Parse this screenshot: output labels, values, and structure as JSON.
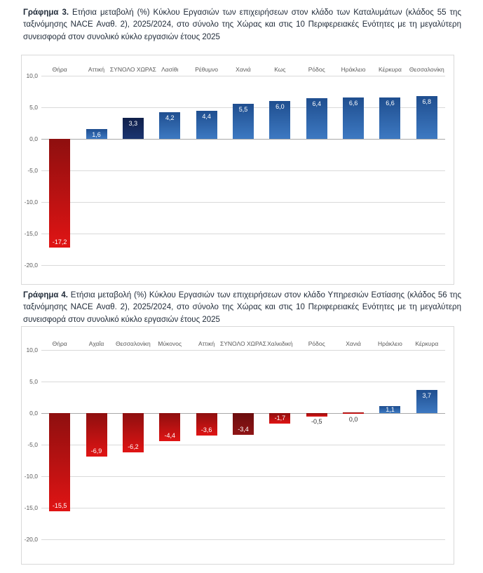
{
  "page": {
    "background": "#ffffff"
  },
  "colors": {
    "title_text": "#1f2a38",
    "axis_text": "#595959",
    "grid_line": "#d9d9d9",
    "zero_line": "#a8a8a8",
    "panel_border": "#d9d9d9",
    "inside_label": "#ffffff",
    "outside_label": "#333333",
    "blue_top": "#1f4e8f",
    "blue_bottom": "#3d79c2",
    "navy_top": "#101f4a",
    "navy_bottom": "#1b3570",
    "red_top": "#8e0f0f",
    "red_bottom": "#e01414",
    "maroon_top": "#6b0d0e",
    "maroon_bottom": "#8f1516"
  },
  "chart_data": [
    {
      "type": "bar",
      "title_prefix": "Γράφημα 3.",
      "title": "Ετήσια μεταβολή (%) Κύκλου Εργασιών των επιχειρήσεων στον κλάδο των Καταλυμάτων (κλάδος 55 της ταξινόμησης NACE Αναθ. 2), 2025/2024, στο σύνολο της Χώρας και στις 10 Περιφερειακές Ενότητες με τη μεγαλύτερη συνεισφορά στον συνολικό κύκλο εργασιών έτους 2025",
      "categories": [
        "Θήρα",
        "Αττική",
        "ΣΥΝΟΛΟ ΧΩΡΑΣ",
        "Λασίθι",
        "Ρέθυμνο",
        "Χανιά",
        "Κως",
        "Ρόδος",
        "Ηράκλειο",
        "Κέρκυρα",
        "Θεσσαλονίκη"
      ],
      "values": [
        -17.2,
        1.6,
        3.3,
        4.2,
        4.4,
        5.5,
        6.0,
        6.4,
        6.6,
        6.6,
        6.8
      ],
      "value_labels": [
        "-17,2",
        "1,6",
        "3,3",
        "4,2",
        "4,4",
        "5,5",
        "6,0",
        "6,4",
        "6,6",
        "6,6",
        "6,8"
      ],
      "styles": [
        "red",
        "blue",
        "navy",
        "blue",
        "blue",
        "blue",
        "blue",
        "blue",
        "blue",
        "blue",
        "blue"
      ],
      "ylim": [
        -20,
        10
      ],
      "ytick_step": 5,
      "ytick_labels": [
        "10,0",
        "5,0",
        "0,0",
        "-5,0",
        "-10,0",
        "-15,0",
        "-20,0"
      ],
      "grid": true,
      "legend": "none"
    },
    {
      "type": "bar",
      "title_prefix": "Γράφημα 4.",
      "title": "Ετήσια μεταβολή (%) Κύκλου Εργασιών των επιχειρήσεων στον κλάδο Υπηρεσιών Εστίασης (κλάδος 56 της ταξινόμησης NACE Αναθ. 2), 2025/2024, στο σύνολο της Χώρας και στις 10 Περιφερειακές Ενότητες με τη μεγαλύτερη συνεισφορά στον συνολικό κύκλο εργασιών έτους 2025",
      "categories": [
        "Θήρα",
        "Αχαΐα",
        "Θεσσαλονίκη",
        "Μύκονος",
        "Αττική",
        "ΣΥΝΟΛΟ ΧΩΡΑΣ",
        "Χαλκιδική",
        "Ρόδος",
        "Χανιά",
        "Ηράκλειο",
        "Κέρκυρα"
      ],
      "values": [
        -15.5,
        -6.9,
        -6.2,
        -4.4,
        -3.6,
        -3.4,
        -1.7,
        -0.5,
        0.0,
        1.1,
        3.7
      ],
      "value_labels": [
        "-15,5",
        "-6,9",
        "-6,2",
        "-4,4",
        "-3,6",
        "-3,4",
        "-1,7",
        "-0,5",
        "0,0",
        "1,1",
        "3,7"
      ],
      "styles": [
        "red",
        "red",
        "red",
        "red",
        "red",
        "maroon",
        "red",
        "red",
        "red",
        "blue",
        "blue"
      ],
      "ylim": [
        -20,
        10
      ],
      "ytick_step": 5,
      "ytick_labels": [
        "10,0",
        "5,0",
        "0,0",
        "-5,0",
        "-10,0",
        "-15,0",
        "-20,0"
      ],
      "grid": true,
      "legend": "none"
    }
  ]
}
